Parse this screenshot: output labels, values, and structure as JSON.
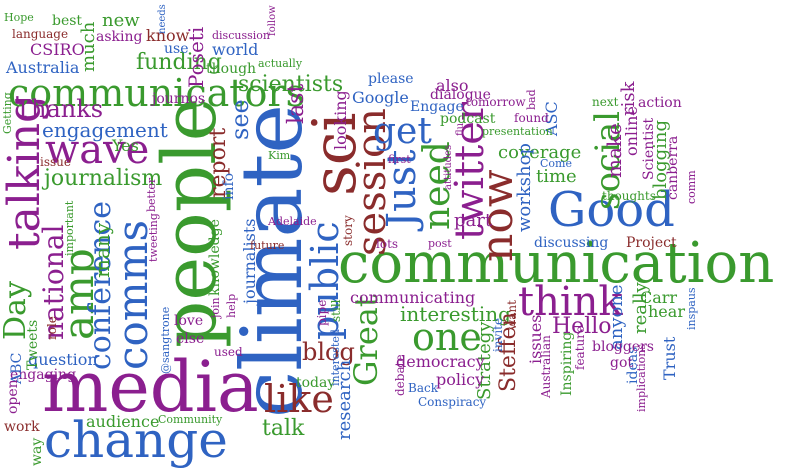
{
  "colors": {
    "background": "#ffffff",
    "green": "#3a9a2e",
    "blue": "#2f63c2",
    "purple": "#8b1f8f",
    "red": "#8a2c2c"
  },
  "words": [
    {
      "text": "climate",
      "color": "#2f63c2",
      "weight": 1
    },
    {
      "text": "people",
      "color": "#3a9a2e",
      "weight": 1
    },
    {
      "text": "media",
      "color": "#8b1f8f",
      "weight": 0.95
    },
    {
      "text": "communication",
      "color": "#3a9a2e",
      "weight": 0.9
    },
    {
      "text": "change",
      "color": "#2f63c2",
      "weight": 0.8
    },
    {
      "text": "sci",
      "color": "#8a2c2c",
      "weight": 0.75
    },
    {
      "text": "Good",
      "color": "#2f63c2",
      "weight": 0.7
    },
    {
      "text": "talking",
      "color": "#8b1f8f",
      "weight": 0.7
    },
    {
      "text": "comms",
      "color": "#2f63c2",
      "weight": 0.7
    },
    {
      "text": "amp",
      "color": "#3a9a2e",
      "weight": 0.65
    },
    {
      "text": "now",
      "color": "#8a2c2c",
      "weight": 0.6
    },
    {
      "text": "twitter",
      "color": "#8b1f8f",
      "weight": 0.55
    },
    {
      "text": "wave",
      "color": "#8b1f8f",
      "weight": 0.55
    },
    {
      "text": "communicators",
      "color": "#3a9a2e",
      "weight": 0.55
    },
    {
      "text": "session",
      "color": "#8a2c2c",
      "weight": 0.55
    },
    {
      "text": "Just",
      "color": "#2f63c2",
      "weight": 0.55
    },
    {
      "text": "think",
      "color": "#8b1f8f",
      "weight": 0.55
    },
    {
      "text": "public",
      "color": "#2f63c2",
      "weight": 0.5
    },
    {
      "text": "one",
      "color": "#3a9a2e",
      "weight": 0.5
    },
    {
      "text": "like",
      "color": "#8a2c2c",
      "weight": 0.5
    },
    {
      "text": "get",
      "color": "#2f63c2",
      "weight": 0.5
    },
    {
      "text": "need",
      "color": "#3a9a2e",
      "weight": 0.5
    },
    {
      "text": "social",
      "color": "#3a9a2e",
      "weight": 0.5
    },
    {
      "text": "Great",
      "color": "#3a9a2e",
      "weight": 0.45
    },
    {
      "text": "conference",
      "color": "#2f63c2",
      "weight": 0.45
    },
    {
      "text": "national",
      "color": "#8b1f8f",
      "weight": 0.45
    },
    {
      "text": "Day",
      "color": "#3a9a2e",
      "weight": 0.45
    },
    {
      "text": "scientists",
      "color": "#3a9a2e",
      "weight": 0.4
    },
    {
      "text": "Thanks",
      "color": "#8b1f8f",
      "weight": 0.4
    },
    {
      "text": "journalism",
      "color": "#3a9a2e",
      "weight": 0.4
    },
    {
      "text": "engagement",
      "color": "#2f63c2",
      "weight": 0.35
    },
    {
      "text": "blog",
      "color": "#8a2c2c",
      "weight": 0.35
    },
    {
      "text": "interesting",
      "color": "#3a9a2e",
      "weight": 0.35
    },
    {
      "text": "Hello",
      "color": "#8b1f8f",
      "weight": 0.35
    },
    {
      "text": "talk",
      "color": "#3a9a2e",
      "weight": 0.35
    },
    {
      "text": "funding",
      "color": "#3a9a2e",
      "weight": 0.35
    },
    {
      "text": "report",
      "color": "#8a2c2c",
      "weight": 0.35
    },
    {
      "text": "see",
      "color": "#2f63c2",
      "weight": 0.35
    },
    {
      "text": "last",
      "color": "#8b1f8f",
      "weight": 0.35
    },
    {
      "text": "many",
      "color": "#3a9a2e",
      "weight": 0.35
    },
    {
      "text": "Poseti",
      "color": "#8b1f8f",
      "weight": 0.3
    },
    {
      "text": "Steffen",
      "color": "#8a2c2c",
      "weight": 0.3
    },
    {
      "text": "communicating",
      "color": "#8b1f8f",
      "weight": 0.3
    },
    {
      "text": "coverage",
      "color": "#3a9a2e",
      "weight": 0.3
    },
    {
      "text": "workshop",
      "color": "#2f63c2",
      "weight": 0.3
    },
    {
      "text": "make",
      "color": "#8b1f8f",
      "weight": 0.3
    },
    {
      "text": "time",
      "color": "#3a9a2e",
      "weight": 0.3
    },
    {
      "text": "blogging",
      "color": "#3a9a2e",
      "weight": 0.3
    },
    {
      "text": "really",
      "color": "#3a9a2e",
      "weight": 0.3
    },
    {
      "text": "anyone",
      "color": "#2f63c2",
      "weight": 0.3
    },
    {
      "text": "research",
      "color": "#2f63c2",
      "weight": 0.3
    },
    {
      "text": "Strategy",
      "color": "#3a9a2e",
      "weight": 0.3
    },
    {
      "text": "part",
      "color": "#8b1f8f",
      "weight": 0.3
    },
    {
      "text": "Google",
      "color": "#2f63c2",
      "weight": 0.28
    },
    {
      "text": "looking",
      "color": "#8b1f8f",
      "weight": 0.28
    },
    {
      "text": "online",
      "color": "#8b1f8f",
      "weight": 0.28
    },
    {
      "text": "ASC",
      "color": "#2f63c2",
      "weight": 0.28
    },
    {
      "text": "risk",
      "color": "#8b1f8f",
      "weight": 0.28
    },
    {
      "text": "Carr",
      "color": "#3a9a2e",
      "weight": 0.28
    },
    {
      "text": "question",
      "color": "#2f63c2",
      "weight": 0.28
    },
    {
      "text": "audience",
      "color": "#3a9a2e",
      "weight": 0.28
    },
    {
      "text": "democracy",
      "color": "#8b1f8f",
      "weight": 0.28
    },
    {
      "text": "world",
      "color": "#2f63c2",
      "weight": 0.28
    },
    {
      "text": "new",
      "color": "#3a9a2e",
      "weight": 0.28
    },
    {
      "text": "know",
      "color": "#8a2c2c",
      "weight": 0.25
    },
    {
      "text": "much",
      "color": "#3a9a2e",
      "weight": 0.25
    },
    {
      "text": "CSIRO",
      "color": "#8b1f8f",
      "weight": 0.25
    },
    {
      "text": "Australia",
      "color": "#2f63c2",
      "weight": 0.25
    },
    {
      "text": "journos",
      "color": "#8b1f8f",
      "weight": 0.25
    },
    {
      "text": "issues",
      "color": "#8b1f8f",
      "weight": 0.25
    },
    {
      "text": "policy",
      "color": "#8b1f8f",
      "weight": 0.25
    },
    {
      "text": "hear",
      "color": "#3a9a2e",
      "weight": 0.25
    },
    {
      "text": "Trust",
      "color": "#2f63c2",
      "weight": 0.25
    },
    {
      "text": "ideas",
      "color": "#2f63c2",
      "weight": 0.25
    },
    {
      "text": "journalists",
      "color": "#2f63c2",
      "weight": 0.25
    },
    {
      "text": "knowledge",
      "color": "#3a9a2e",
      "weight": 0.25
    },
    {
      "text": "engaging",
      "color": "#8b1f8f",
      "weight": 0.25
    },
    {
      "text": "work",
      "color": "#8a2c2c",
      "weight": 0.25
    },
    {
      "text": "Yes",
      "color": "#3a9a2e",
      "weight": 0.25
    },
    {
      "text": "also",
      "color": "#8b1f8f",
      "weight": 0.25
    },
    {
      "text": "info",
      "color": "#2f63c2",
      "weight": 0.22
    },
    {
      "text": "please",
      "color": "#2f63c2",
      "weight": 0.22
    },
    {
      "text": "Engage",
      "color": "#2f63c2",
      "weight": 0.22
    },
    {
      "text": "dialogue",
      "color": "#8b1f8f",
      "weight": 0.22
    },
    {
      "text": "podcast",
      "color": "#3a9a2e",
      "weight": 0.22
    },
    {
      "text": "Tweets",
      "color": "#3a9a2e",
      "weight": 0.22
    },
    {
      "text": "bloggers",
      "color": "#8b1f8f",
      "weight": 0.22
    },
    {
      "text": "got",
      "color": "#8b1f8f",
      "weight": 0.22
    },
    {
      "text": "today",
      "color": "#3a9a2e",
      "weight": 0.22
    },
    {
      "text": "Scientist",
      "color": "#8b1f8f",
      "weight": 0.2
    },
    {
      "text": "canberra",
      "color": "#8b1f8f",
      "weight": 0.2
    },
    {
      "text": "Project",
      "color": "#8a2c2c",
      "weight": 0.2
    },
    {
      "text": "thoughts",
      "color": "#3a9a2e",
      "weight": 0.2
    },
    {
      "text": "action",
      "color": "#8b1f8f",
      "weight": 0.2
    },
    {
      "text": "discussing",
      "color": "#2f63c2",
      "weight": 0.2
    },
    {
      "text": "lots",
      "color": "#8b1f8f",
      "weight": 0.2
    },
    {
      "text": "story",
      "color": "#8a2c2c",
      "weight": 0.2
    },
    {
      "text": "Inspiring",
      "color": "#3a9a2e",
      "weight": 0.2
    },
    {
      "text": "want",
      "color": "#8a2c2c",
      "weight": 0.2
    },
    {
      "text": "invite",
      "color": "#2f63c2",
      "weight": 0.2
    },
    {
      "text": "debate",
      "color": "#8b1f8f",
      "weight": 0.2
    },
    {
      "text": "Back",
      "color": "#2f63c2",
      "weight": 0.2
    },
    {
      "text": "Conspiracy",
      "color": "#2f63c2",
      "weight": 0.2
    },
    {
      "text": "Australian",
      "color": "#8b1f8f",
      "weight": 0.18
    },
    {
      "text": "feature",
      "color": "#8b1f8f",
      "weight": 0.18
    },
    {
      "text": "implications",
      "color": "#8b1f8f",
      "weight": 0.18
    },
    {
      "text": "inspaus",
      "color": "#2f63c2",
      "weight": 0.18
    },
    {
      "text": "comm",
      "color": "#8b1f8f",
      "weight": 0.18
    },
    {
      "text": "ABC",
      "color": "#2f63c2",
      "weight": 0.2
    },
    {
      "text": "open",
      "color": "#8b1f8f",
      "weight": 0.2
    },
    {
      "text": "way",
      "color": "#3a9a2e",
      "weight": 0.2
    },
    {
      "text": "role",
      "color": "#8a2c2c",
      "weight": 0.2
    },
    {
      "text": "love",
      "color": "#8b1f8f",
      "weight": 0.2
    },
    {
      "text": "else",
      "color": "#8b1f8f",
      "weight": 0.2
    },
    {
      "text": "used",
      "color": "#8b1f8f",
      "weight": 0.18
    },
    {
      "text": "Community",
      "color": "#3a9a2e",
      "weight": 0.18
    },
    {
      "text": "@sangtrone",
      "color": "#2f63c2",
      "weight": 0.16
    },
    {
      "text": "tweeting",
      "color": "#8b1f8f",
      "weight": 0.16
    },
    {
      "text": "better",
      "color": "#8b1f8f",
      "weight": 0.16
    },
    {
      "text": "important",
      "color": "#3a9a2e",
      "weight": 0.16
    },
    {
      "text": "issue",
      "color": "#8a2c2c",
      "weight": 0.18
    },
    {
      "text": "join",
      "color": "#8b1f8f",
      "weight": 0.16
    },
    {
      "text": "help",
      "color": "#8b1f8f",
      "weight": 0.16
    },
    {
      "text": "future",
      "color": "#8a2c2c",
      "weight": 0.16
    },
    {
      "text": "Adelaide",
      "color": "#8b1f8f",
      "weight": 0.16
    },
    {
      "text": "Kim",
      "color": "#3a9a2e",
      "weight": 0.16
    },
    {
      "text": "interested",
      "color": "#2f63c2",
      "weight": 0.16
    },
    {
      "text": "pipe",
      "color": "#8b1f8f",
      "weight": 0.16
    },
    {
      "text": "still",
      "color": "#3a9a2e",
      "weight": 0.16
    },
    {
      "text": "post",
      "color": "#8b1f8f",
      "weight": 0.16
    },
    {
      "text": "first",
      "color": "#8b1f8f",
      "weight": 0.16
    },
    {
      "text": "attitudes",
      "color": "#8b1f8f",
      "weight": 0.14
    },
    {
      "text": "flu",
      "color": "#8b1f8f",
      "weight": 0.14
    },
    {
      "text": "Come",
      "color": "#2f63c2",
      "weight": 0.16
    },
    {
      "text": "presentation",
      "color": "#3a9a2e",
      "weight": 0.16
    },
    {
      "text": "found",
      "color": "#8b1f8f",
      "weight": 0.18
    },
    {
      "text": "bad",
      "color": "#8b1f8f",
      "weight": 0.16
    },
    {
      "text": "tomorrow",
      "color": "#8b1f8f",
      "weight": 0.18
    },
    {
      "text": "next",
      "color": "#3a9a2e",
      "weight": 0.18
    },
    {
      "text": "Getting",
      "color": "#3a9a2e",
      "weight": 0.16
    },
    {
      "text": "Hope",
      "color": "#3a9a2e",
      "weight": 0.16
    },
    {
      "text": "best",
      "color": "#3a9a2e",
      "weight": 0.18
    },
    {
      "text": "language",
      "color": "#8a2c2c",
      "weight": 0.16
    },
    {
      "text": "asking",
      "color": "#8b1f8f",
      "weight": 0.18
    },
    {
      "text": "use",
      "color": "#2f63c2",
      "weight": 0.18
    },
    {
      "text": "needs",
      "color": "#2f63c2",
      "weight": 0.14
    },
    {
      "text": "discussion",
      "color": "#8b1f8f",
      "weight": 0.16
    },
    {
      "text": "follow",
      "color": "#8b1f8f",
      "weight": 0.14
    },
    {
      "text": "though",
      "color": "#3a9a2e",
      "weight": 0.18
    },
    {
      "text": "actually",
      "color": "#3a9a2e",
      "weight": 0.16
    }
  ]
}
